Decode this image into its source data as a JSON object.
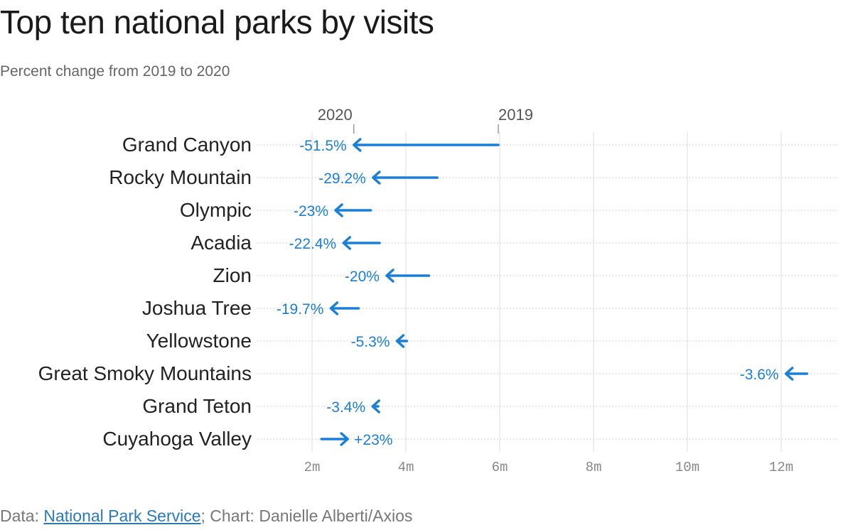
{
  "header": {
    "title": "Top ten national parks by visits",
    "subtitle": "Percent change from 2019 to 2020"
  },
  "footer": {
    "prefix": "Data: ",
    "source_link": "National Park Service",
    "suffix": "; Chart: Danielle Alberti/Axios"
  },
  "colors": {
    "arrow": "#1a7fd6",
    "label": "#1a7fd6",
    "park_label": "#222222",
    "grid": "#dddddd",
    "axis_text": "#888888"
  },
  "chart_data": {
    "type": "arrow",
    "title": "Top ten national parks by visits",
    "subtitle": "Percent change from 2019 to 2020",
    "xlim": [
      0.85,
      13.2
    ],
    "x_ticks": [
      2,
      4,
      6,
      8,
      10,
      12
    ],
    "x_tick_labels": [
      "2m",
      "4m",
      "6m",
      "8m",
      "10m",
      "12m"
    ],
    "grid": true,
    "legend_key": {
      "start_label": "2019",
      "end_label": "2020"
    },
    "parks": [
      {
        "name": "Grand Canyon",
        "v2019": 5.97,
        "v2020": 2.89,
        "change_label": "-51.5%"
      },
      {
        "name": "Rocky Mountain",
        "v2019": 4.67,
        "v2020": 3.3,
        "change_label": "-29.2%"
      },
      {
        "name": "Olympic",
        "v2019": 3.25,
        "v2020": 2.5,
        "change_label": "-23%"
      },
      {
        "name": "Acadia",
        "v2019": 3.44,
        "v2020": 2.67,
        "change_label": "-22.4%"
      },
      {
        "name": "Zion",
        "v2019": 4.49,
        "v2020": 3.59,
        "change_label": "-20%"
      },
      {
        "name": "Joshua Tree",
        "v2019": 2.99,
        "v2020": 2.4,
        "change_label": "-19.7%"
      },
      {
        "name": "Yellowstone",
        "v2019": 4.02,
        "v2020": 3.81,
        "change_label": "-5.3%"
      },
      {
        "name": "Great Smoky Mountains",
        "v2019": 12.55,
        "v2020": 12.1,
        "change_label": "-3.6%"
      },
      {
        "name": "Grand Teton",
        "v2019": 3.41,
        "v2020": 3.29,
        "change_label": "-3.4%"
      },
      {
        "name": "Cuyahoga Valley",
        "v2019": 2.2,
        "v2020": 2.76,
        "change_label": "+23%"
      }
    ]
  }
}
